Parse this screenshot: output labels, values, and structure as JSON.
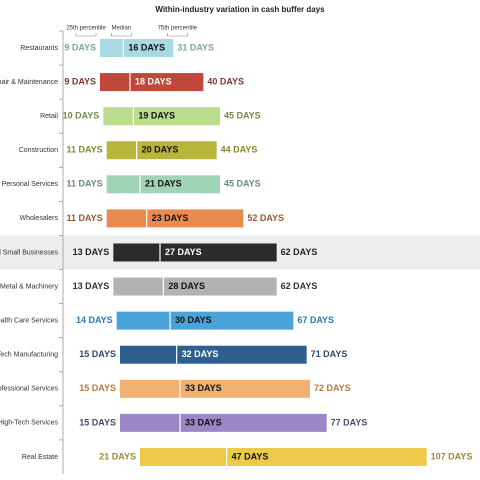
{
  "chart_data": {
    "type": "range-bar",
    "title": "Within-industry variation in cash buffer days",
    "categories": [
      "Restaurants",
      "Repair & Maintenance",
      "Retail",
      "Construction",
      "Personal Services",
      "Wholesalers",
      "All Small Businesses",
      "Metal & Machinery",
      "Health Care Services",
      "High-Tech Manufacturing",
      "Professional Services",
      "High-Tech Services",
      "Real Estate"
    ],
    "colors": [
      "#a9d9e2",
      "#c0473a",
      "#badc8c",
      "#b8b63a",
      "#9fd5b6",
      "#e98b4f",
      "#2b2b2b",
      "#b2b2b2",
      "#4aa3d8",
      "#2f5f8f",
      "#f1b172",
      "#9b87c5",
      "#edca4b"
    ],
    "label_colors": [
      "#7fa3a8",
      "#7a3a2a",
      "#6f8a4a",
      "#8a8830",
      "#6a8a78",
      "#9a5a30",
      "#222222",
      "#333333",
      "#2a7ab0",
      "#2a4a70",
      "#b07a40",
      "#4a4a6a",
      "#a08a30"
    ],
    "highlight_index": 6,
    "xlim": [
      0,
      120
    ],
    "series": [
      {
        "name": "25th percentile",
        "values": [
          9,
          9,
          10,
          11,
          11,
          11,
          13,
          13,
          14,
          15,
          15,
          15,
          21
        ],
        "value_labels": [
          "9 DAYS",
          "9 DAYS",
          "10 DAYS",
          "11 DAYS",
          "11 DAYS",
          "11 DAYS",
          "13 DAYS",
          "13 DAYS",
          "14 DAYS",
          "15 DAYS",
          "15 DAYS",
          "15 DAYS",
          "21 DAYS"
        ]
      },
      {
        "name": "Median",
        "values": [
          16,
          18,
          19,
          20,
          21,
          23,
          27,
          28,
          30,
          32,
          33,
          33,
          47
        ],
        "value_labels": [
          "16 DAYS",
          "18 DAYS",
          "19 DAYS",
          "20 DAYS",
          "21 DAYS",
          "23 DAYS",
          "27 DAYS",
          "28 DAYS",
          "30 DAYS",
          "32 DAYS",
          "33 DAYS",
          "33 DAYS",
          "47 DAYS"
        ]
      },
      {
        "name": "75th percentile",
        "values": [
          31,
          40,
          45,
          44,
          45,
          52,
          62,
          62,
          67,
          71,
          72,
          77,
          107
        ],
        "value_labels": [
          "31 DAYS",
          "40 DAYS",
          "45 DAYS",
          "44 DAYS",
          "45 DAYS",
          "52 DAYS",
          "62 DAYS",
          "62 DAYS",
          "67 DAYS",
          "71 DAYS",
          "72 DAYS",
          "77 DAYS",
          "107 DAYS"
        ]
      }
    ]
  }
}
